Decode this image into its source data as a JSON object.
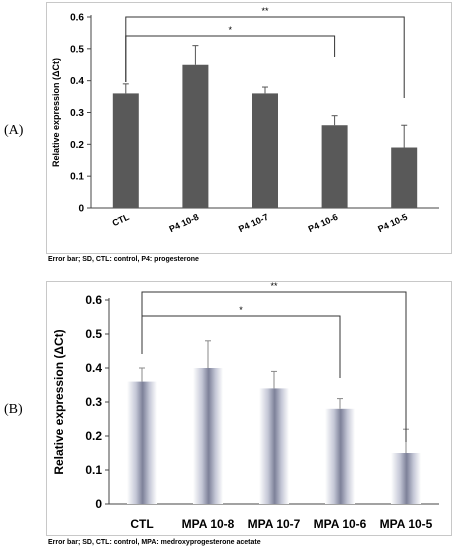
{
  "panels": [
    {
      "label": "(A)",
      "caption": "Error bar; SD, CTL: control, P4: progesterone"
    },
    {
      "label": "(B)",
      "caption": "Error bar; SD, CTL: control, MPA: medroxyprogesterone acetate"
    }
  ],
  "chart_data": [
    {
      "type": "bar",
      "title": "",
      "xlabel": "",
      "ylabel": "Relative expression (ΔCt)",
      "ylim": [
        0,
        0.6
      ],
      "yticks": [
        "0",
        "0.1",
        "0.2",
        "0.3",
        "0.4",
        "0.5",
        "0.6"
      ],
      "grid": false,
      "bar_color": "#595959",
      "categories": [
        "CTL",
        "P4 10-8",
        "P4 10-7",
        "P4 10-6",
        "P4 10-5"
      ],
      "values": [
        0.36,
        0.45,
        0.36,
        0.26,
        0.19
      ],
      "errors": [
        0.03,
        0.06,
        0.02,
        0.03,
        0.07
      ],
      "significance": [
        {
          "from": "CTL",
          "to": "P4 10-6",
          "label": "*"
        },
        {
          "from": "CTL",
          "to": "P4 10-5",
          "label": "**"
        }
      ]
    },
    {
      "type": "bar",
      "title": "",
      "xlabel": "",
      "ylabel": "Relative expression (ΔCt)",
      "ylim": [
        0,
        0.6
      ],
      "yticks": [
        "0",
        "0.1",
        "0.2",
        "0.3",
        "0.4",
        "0.5",
        "0.6"
      ],
      "grid": false,
      "bar_color": "#a0a4b8",
      "categories": [
        "CTL",
        "MPA 10-8",
        "MPA 10-7",
        "MPA 10-6",
        "MPA 10-5"
      ],
      "values": [
        0.36,
        0.4,
        0.34,
        0.28,
        0.15
      ],
      "errors": [
        0.04,
        0.08,
        0.05,
        0.03,
        0.07
      ],
      "significance": [
        {
          "from": "CTL",
          "to": "MPA 10-6",
          "label": "*"
        },
        {
          "from": "CTL",
          "to": "MPA 10-5",
          "label": "**"
        }
      ]
    }
  ]
}
